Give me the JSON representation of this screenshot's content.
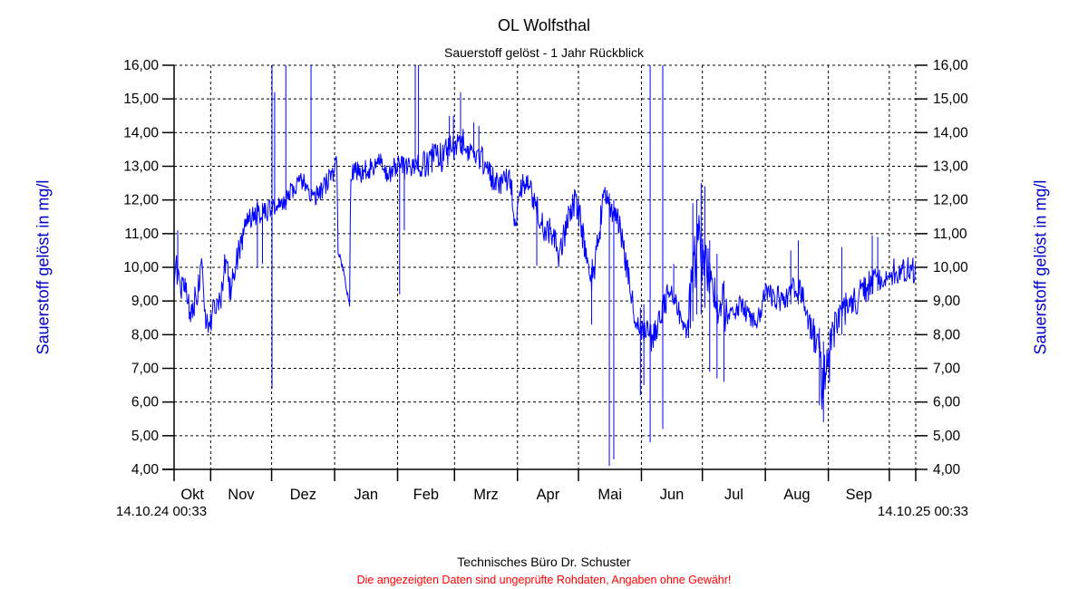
{
  "header": {
    "title": "OL Wolfsthal",
    "subtitle": "Sauerstoff gelöst - 1 Jahr Rückblick"
  },
  "axes": {
    "y_title_left": "Sauerstoff gelöst in mg/l",
    "y_title_right": "Sauerstoff gelöst in mg/l",
    "y_tick_labels": [
      "16,00",
      "15,00",
      "14,00",
      "13,00",
      "12,00",
      "11,00",
      "10,00",
      "9,00",
      "8,00",
      "7,00",
      "6,00",
      "5,00",
      "4,00"
    ],
    "y_tick_values": [
      16,
      15,
      14,
      13,
      12,
      11,
      10,
      9,
      8,
      7,
      6,
      5,
      4
    ],
    "month_labels": [
      "Okt",
      "Nov",
      "Dez",
      "Jan",
      "Feb",
      "Mrz",
      "Apr",
      "Mai",
      "Jun",
      "Jul",
      "Aug",
      "Sep"
    ],
    "start_date_label": "14.10.24 00:33",
    "end_date_label": "14.10.25 00:33"
  },
  "footer": {
    "company": "Technisches Büro Dr. Schuster",
    "warning": "Die angezeigten Daten sind ungeprüfte Rohdaten, Angaben ohne Gewähr!"
  },
  "colors": {
    "line": "#0000ff",
    "axis_title": "#0000cc",
    "text": "#000000",
    "grid": "#000000",
    "warning": "#ff0000",
    "background": "#ffffff"
  },
  "chart_data": {
    "type": "line",
    "title": "OL Wolfsthal",
    "subtitle": "Sauerstoff gelöst - 1 Jahr Rückblick",
    "xlabel": "",
    "ylabel": "Sauerstoff gelöst in mg/l",
    "ylim": [
      4,
      16
    ],
    "grid": "dashed",
    "x_start": "14.10.24 00:33",
    "x_end": "14.10.25 00:33",
    "x_range_days": 365,
    "month_start_days": [
      18,
      48,
      79,
      110,
      138,
      169,
      199,
      230,
      260,
      291,
      322,
      352
    ],
    "series": [
      {
        "name": "Sauerstoff gelöst",
        "unit": "mg/l",
        "color": "#0000ff",
        "anchor_points_day_value": [
          [
            0,
            9.9
          ],
          [
            1,
            10.2
          ],
          [
            2.5,
            9.6
          ],
          [
            4.5,
            9.3
          ],
          [
            6,
            9.2
          ],
          [
            8,
            8.6
          ],
          [
            10,
            9.0
          ],
          [
            12,
            9.4
          ],
          [
            13.5,
            10.0
          ],
          [
            15,
            9.0
          ],
          [
            16,
            8.3
          ],
          [
            17.5,
            8.1
          ],
          [
            19,
            8.7
          ],
          [
            21,
            8.8
          ],
          [
            23,
            9.0
          ],
          [
            25,
            10.1
          ],
          [
            26.5,
            9.7
          ],
          [
            28,
            9.3
          ],
          [
            30,
            10.0
          ],
          [
            31.5,
            10.4
          ],
          [
            33,
            10.8
          ],
          [
            35,
            11.3
          ],
          [
            37,
            11.4
          ],
          [
            39,
            11.6
          ],
          [
            41.5,
            11.6
          ],
          [
            44,
            11.7
          ],
          [
            46,
            11.7
          ],
          [
            48,
            11.8
          ],
          [
            50,
            11.8
          ],
          [
            52,
            11.9
          ],
          [
            54,
            12.0
          ],
          [
            56,
            12.1
          ],
          [
            58,
            12.3
          ],
          [
            60,
            12.4
          ],
          [
            62,
            12.5
          ],
          [
            64,
            12.5
          ],
          [
            66,
            12.4
          ],
          [
            67.5,
            12.1
          ],
          [
            69,
            12.1
          ],
          [
            71,
            12.2
          ],
          [
            73,
            12.3
          ],
          [
            75,
            12.5
          ],
          [
            77,
            12.7
          ],
          [
            79,
            12.9
          ],
          [
            80.2,
            13.1
          ],
          [
            80.6,
            10.5
          ],
          [
            82,
            10.2
          ],
          [
            83.5,
            9.8
          ],
          [
            85,
            9.35
          ],
          [
            86.5,
            8.85
          ],
          [
            86.8,
            12.5
          ],
          [
            87.5,
            12.75
          ],
          [
            90,
            12.85
          ],
          [
            93,
            12.8
          ],
          [
            96,
            12.95
          ],
          [
            99,
            13.1
          ],
          [
            101,
            13.25
          ],
          [
            103,
            13.0
          ],
          [
            105,
            12.65
          ],
          [
            107,
            12.8
          ],
          [
            108.5,
            13.0
          ],
          [
            110.5,
            13.05
          ],
          [
            113,
            12.85
          ],
          [
            116,
            12.9
          ],
          [
            119,
            13.0
          ],
          [
            122,
            13.05
          ],
          [
            125,
            13.1
          ],
          [
            128,
            13.3
          ],
          [
            131,
            13.25
          ],
          [
            133,
            13.3
          ],
          [
            135,
            13.5
          ],
          [
            137,
            13.6
          ],
          [
            139,
            13.75
          ],
          [
            140.5,
            13.9
          ],
          [
            142,
            13.8
          ],
          [
            144,
            13.5
          ],
          [
            145.5,
            13.3
          ],
          [
            148,
            13.25
          ],
          [
            151,
            13.25
          ],
          [
            153,
            13.0
          ],
          [
            155,
            12.8
          ],
          [
            157.5,
            12.6
          ],
          [
            160,
            12.5
          ],
          [
            162,
            12.5
          ],
          [
            164,
            12.6
          ],
          [
            165.5,
            12.6
          ],
          [
            167,
            11.7
          ],
          [
            168,
            11.3
          ],
          [
            169.5,
            11.8
          ],
          [
            171,
            12.3
          ],
          [
            172.5,
            12.5
          ],
          [
            174,
            12.4
          ],
          [
            176,
            12.1
          ],
          [
            178,
            11.9
          ],
          [
            180,
            11.5
          ],
          [
            182,
            11.2
          ],
          [
            184.5,
            11.1
          ],
          [
            186.5,
            11.0
          ],
          [
            188.5,
            10.6
          ],
          [
            189.8,
            10.3
          ],
          [
            191.5,
            10.8
          ],
          [
            193.5,
            11.3
          ],
          [
            195.5,
            11.7
          ],
          [
            197,
            11.9
          ],
          [
            199,
            11.7
          ],
          [
            200.5,
            11.2
          ],
          [
            202,
            10.5
          ],
          [
            204,
            10.0
          ],
          [
            205.5,
            9.7
          ],
          [
            207,
            10.0
          ],
          [
            209,
            10.9
          ],
          [
            211,
            11.9
          ],
          [
            212.5,
            12.2
          ],
          [
            214,
            11.8
          ],
          [
            216,
            11.6
          ],
          [
            218,
            11.5
          ],
          [
            220,
            11.0
          ],
          [
            222,
            10.3
          ],
          [
            224,
            9.6
          ],
          [
            226,
            8.8
          ],
          [
            228,
            8.3
          ],
          [
            229.5,
            8.1
          ],
          [
            231,
            8.2
          ],
          [
            232.5,
            8.3
          ],
          [
            234,
            8.0
          ],
          [
            236,
            7.9
          ],
          [
            238,
            8.3
          ],
          [
            240,
            8.6
          ],
          [
            242,
            9.0
          ],
          [
            243.5,
            9.2
          ],
          [
            245.5,
            9.3
          ],
          [
            247.5,
            8.8
          ],
          [
            249.5,
            8.5
          ],
          [
            251.5,
            8.0
          ],
          [
            253,
            8.3
          ],
          [
            254.5,
            9.3
          ],
          [
            256,
            10.3
          ],
          [
            258,
            10.5
          ],
          [
            260,
            10.4
          ],
          [
            262,
            10.1
          ],
          [
            264,
            9.6
          ],
          [
            266,
            9.2
          ],
          [
            268,
            9.0
          ],
          [
            270,
            8.8
          ],
          [
            272,
            8.6
          ],
          [
            274.5,
            8.6
          ],
          [
            277,
            8.8
          ],
          [
            279.5,
            8.9
          ],
          [
            282,
            8.6
          ],
          [
            284.5,
            8.5
          ],
          [
            287,
            8.4
          ],
          [
            289,
            8.8
          ],
          [
            290.5,
            9.3
          ],
          [
            292.5,
            9.35
          ],
          [
            295,
            9.2
          ],
          [
            297.5,
            9.1
          ],
          [
            299,
            9.0
          ],
          [
            301,
            9.1
          ],
          [
            303.5,
            9.3
          ],
          [
            305.5,
            9.4
          ],
          [
            307.5,
            9.4
          ],
          [
            309.5,
            9.1
          ],
          [
            311,
            8.8
          ],
          [
            313,
            8.4
          ],
          [
            314.5,
            8.1
          ],
          [
            316,
            7.5
          ],
          [
            317.5,
            7.0
          ],
          [
            319,
            6.6
          ],
          [
            320.5,
            6.8
          ],
          [
            322,
            7.3
          ],
          [
            323.5,
            7.8
          ],
          [
            325,
            8.1
          ],
          [
            327,
            8.4
          ],
          [
            329,
            8.6
          ],
          [
            331.5,
            8.8
          ],
          [
            334,
            8.9
          ],
          [
            336.5,
            9.1
          ],
          [
            339,
            9.3
          ],
          [
            341.5,
            9.4
          ],
          [
            343.5,
            9.55
          ],
          [
            345.5,
            9.65
          ],
          [
            348,
            9.7
          ],
          [
            350.5,
            9.7
          ],
          [
            353,
            9.85
          ],
          [
            356,
            9.9
          ],
          [
            359,
            9.9
          ],
          [
            361.5,
            10.0
          ],
          [
            363.5,
            9.95
          ],
          [
            365,
            9.9
          ]
        ],
        "noise_segments_day_day_amp": [
          [
            0,
            2,
            0.65
          ],
          [
            2,
            16,
            0.45
          ],
          [
            16,
            25,
            0.35
          ],
          [
            25,
            35,
            0.45
          ],
          [
            35,
            46,
            0.35
          ],
          [
            46,
            58,
            0.28
          ],
          [
            58,
            80,
            0.3
          ],
          [
            80,
            87,
            0.12
          ],
          [
            87,
            110,
            0.33
          ],
          [
            110,
            122,
            0.4
          ],
          [
            122,
            134,
            0.45
          ],
          [
            134,
            143,
            0.5
          ],
          [
            143,
            152,
            0.4
          ],
          [
            152,
            166,
            0.38
          ],
          [
            166,
            199,
            0.42
          ],
          [
            199,
            213,
            0.5
          ],
          [
            213,
            218,
            0.3
          ],
          [
            218,
            230,
            0.4
          ],
          [
            230,
            243,
            0.45
          ],
          [
            243,
            253,
            0.35
          ],
          [
            253,
            262,
            1.1
          ],
          [
            262,
            272,
            0.75
          ],
          [
            272,
            290,
            0.3
          ],
          [
            290,
            310,
            0.4
          ],
          [
            310,
            316,
            0.5
          ],
          [
            316,
            323,
            0.9
          ],
          [
            323,
            333,
            0.55
          ],
          [
            333,
            343,
            0.45
          ],
          [
            343,
            365,
            0.4
          ]
        ],
        "spikes_day_min_max": [
          [
            1.8,
            9.6,
            11.1
          ],
          [
            41,
            10.0,
            12.0
          ],
          [
            43.5,
            10.1,
            11.9
          ],
          [
            48.2,
            6.4,
            16
          ],
          [
            49.5,
            11.6,
            15.2
          ],
          [
            55,
            11.7,
            16
          ],
          [
            67.4,
            12.0,
            16
          ],
          [
            111,
            9.2,
            13.1
          ],
          [
            113.3,
            11.1,
            13.0
          ],
          [
            118.7,
            12.9,
            16
          ],
          [
            120.3,
            12.9,
            16
          ],
          [
            135.5,
            13.3,
            14.5
          ],
          [
            137.5,
            13.4,
            14.5
          ],
          [
            141,
            13.7,
            15.2
          ],
          [
            147.5,
            13.25,
            14.3
          ],
          [
            150,
            13.2,
            14.2
          ],
          [
            178.5,
            10.05,
            12.0
          ],
          [
            205.5,
            8.3,
            10.0
          ],
          [
            214.2,
            4.1,
            12.2
          ],
          [
            216.4,
            4.3,
            12.0
          ],
          [
            229.5,
            6.2,
            8.8
          ],
          [
            231.2,
            6.5,
            8.9
          ],
          [
            234.3,
            4.8,
            16
          ],
          [
            240.5,
            5.2,
            16
          ],
          [
            245.9,
            8.9,
            10.1
          ],
          [
            255.3,
            8.4,
            11.9
          ],
          [
            257.2,
            8.6,
            12.0
          ],
          [
            259.4,
            8.6,
            12.5
          ],
          [
            261.2,
            8.8,
            12.4
          ],
          [
            263.6,
            6.9,
            10.8
          ],
          [
            267.2,
            6.7,
            10.4
          ],
          [
            270.6,
            6.6,
            9.6
          ],
          [
            303.5,
            8.9,
            10.5
          ],
          [
            307.2,
            8.9,
            10.8
          ],
          [
            317.6,
            5.9,
            8.2
          ],
          [
            319.6,
            5.4,
            7.8
          ],
          [
            328.6,
            8.0,
            10.6
          ],
          [
            343.6,
            9.2,
            10.95
          ],
          [
            346.3,
            9.3,
            10.9
          ]
        ]
      }
    ]
  }
}
